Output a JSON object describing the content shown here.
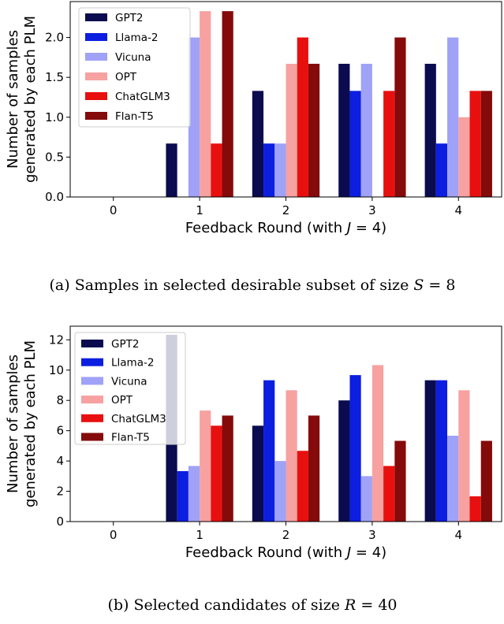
{
  "chart_data": [
    {
      "type": "bar",
      "title": "",
      "xlabel": "Feedback Round (with J = 4)",
      "ylabel_lines": [
        "Number of samples",
        "generated by each PLM"
      ],
      "categories": [
        "0",
        "1",
        "2",
        "3",
        "4"
      ],
      "ylim": [
        0,
        2.45
      ],
      "yticks": [
        0.0,
        0.5,
        1.0,
        1.5,
        2.0
      ],
      "ytick_labels": [
        "0.0",
        "0.5",
        "1.0",
        "1.5",
        "2.0"
      ],
      "legend_position": "top-left",
      "series": [
        {
          "name": "GPT2",
          "color": "#0b0b4f",
          "values": [
            0,
            0.67,
            1.33,
            1.67,
            1.67
          ]
        },
        {
          "name": "Llama-2",
          "color": "#0c1ee0",
          "values": [
            0,
            0,
            0.67,
            1.33,
            0.67
          ]
        },
        {
          "name": "Vicuna",
          "color": "#9fa2f7",
          "values": [
            0,
            2.0,
            0.67,
            1.67,
            2.0
          ]
        },
        {
          "name": "OPT",
          "color": "#f7a1a1",
          "values": [
            0,
            2.33,
            1.67,
            0,
            1.0
          ]
        },
        {
          "name": "ChatGLM3",
          "color": "#e8100f",
          "values": [
            0,
            0.67,
            2.0,
            1.33,
            1.33
          ]
        },
        {
          "name": "Flan-T5",
          "color": "#850a0a",
          "values": [
            0,
            2.33,
            1.67,
            2.0,
            1.33
          ]
        }
      ],
      "caption_prefix": "(a) Samples in selected desirable subset of size ",
      "caption_var": "S",
      "caption_suffix": " = 8"
    },
    {
      "type": "bar",
      "title": "",
      "xlabel": "Feedback Round (with J = 4)",
      "ylabel_lines": [
        "Number of samples",
        "generated by each PLM"
      ],
      "categories": [
        "0",
        "1",
        "2",
        "3",
        "4"
      ],
      "ylim": [
        0,
        12.9
      ],
      "yticks": [
        0,
        2,
        4,
        6,
        8,
        10,
        12
      ],
      "ytick_labels": [
        "0",
        "2",
        "4",
        "6",
        "8",
        "10",
        "12"
      ],
      "legend_position": "top-left",
      "series": [
        {
          "name": "GPT2",
          "color": "#0b0b4f",
          "values": [
            0,
            12.33,
            6.33,
            8.0,
            9.33
          ]
        },
        {
          "name": "Llama-2",
          "color": "#0c1ee0",
          "values": [
            0,
            3.33,
            9.33,
            9.67,
            9.33
          ]
        },
        {
          "name": "Vicuna",
          "color": "#9fa2f7",
          "values": [
            0,
            3.67,
            4.0,
            3.0,
            5.67
          ]
        },
        {
          "name": "OPT",
          "color": "#f7a1a1",
          "values": [
            0,
            7.33,
            8.67,
            10.33,
            8.67
          ]
        },
        {
          "name": "ChatGLM3",
          "color": "#e8100f",
          "values": [
            0,
            6.33,
            4.67,
            3.67,
            1.67
          ]
        },
        {
          "name": "Flan-T5",
          "color": "#850a0a",
          "values": [
            0,
            7.0,
            7.0,
            5.33,
            5.33
          ]
        }
      ],
      "caption_prefix": "(b) Selected candidates of size ",
      "caption_var": "R",
      "caption_suffix": " = 40"
    }
  ]
}
